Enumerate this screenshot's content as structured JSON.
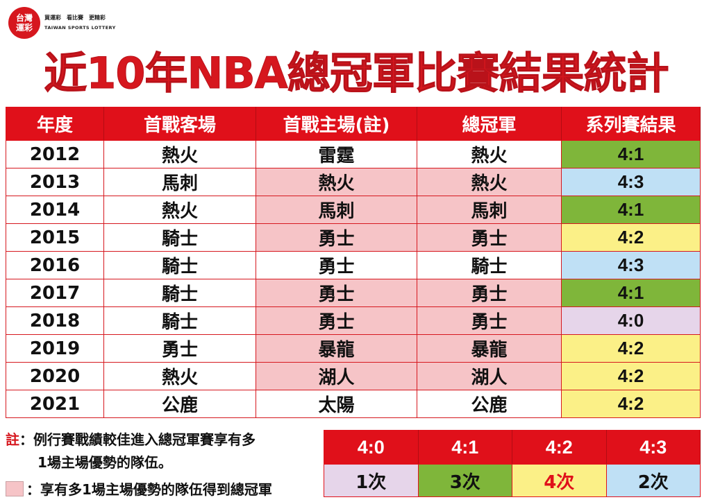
{
  "logo": {
    "line1": "台灣",
    "line2": "運彩"
  },
  "tagline": "買運彩　看比賽　更精彩",
  "tagline_en": "TAIWAN SPORTS LOTTERY",
  "title": "近10年NBA總冠軍比賽結果統計",
  "table": {
    "headers": [
      "年度",
      "首戰客場",
      "首戰主場(註)",
      "總冠軍",
      "系列賽結果"
    ],
    "rows": [
      {
        "year": "2012",
        "away": "熱火",
        "home": "雷霆",
        "champion": "熱火",
        "result": "4:1",
        "highlight": false,
        "result_color": "#7fb63a"
      },
      {
        "year": "2013",
        "away": "馬刺",
        "home": "熱火",
        "champion": "熱火",
        "result": "4:3",
        "highlight": true,
        "result_color": "#bfe0f5"
      },
      {
        "year": "2014",
        "away": "熱火",
        "home": "馬刺",
        "champion": "馬刺",
        "result": "4:1",
        "highlight": true,
        "result_color": "#7fb63a"
      },
      {
        "year": "2015",
        "away": "騎士",
        "home": "勇士",
        "champion": "勇士",
        "result": "4:2",
        "highlight": true,
        "result_color": "#fbf087"
      },
      {
        "year": "2016",
        "away": "騎士",
        "home": "勇士",
        "champion": "騎士",
        "result": "4:3",
        "highlight": false,
        "result_color": "#bfe0f5"
      },
      {
        "year": "2017",
        "away": "騎士",
        "home": "勇士",
        "champion": "勇士",
        "result": "4:1",
        "highlight": true,
        "result_color": "#7fb63a"
      },
      {
        "year": "2018",
        "away": "騎士",
        "home": "勇士",
        "champion": "勇士",
        "result": "4:0",
        "highlight": true,
        "result_color": "#e6d5ea"
      },
      {
        "year": "2019",
        "away": "勇士",
        "home": "暴龍",
        "champion": "暴龍",
        "result": "4:2",
        "highlight": true,
        "result_color": "#fbf087"
      },
      {
        "year": "2020",
        "away": "熱火",
        "home": "湖人",
        "champion": "湖人",
        "result": "4:2",
        "highlight": true,
        "result_color": "#fbf087"
      },
      {
        "year": "2021",
        "away": "公鹿",
        "home": "太陽",
        "champion": "公鹿",
        "result": "4:2",
        "highlight": false,
        "result_color": "#fbf087"
      }
    ]
  },
  "notes": {
    "note_mark": "註",
    "note_line1": "：例行賽戰績較佳進入總冠軍賽享有多",
    "note_line2": "1場主場優勢的隊伍。",
    "legend_text": "：享有多1場主場優勢的隊伍得到總冠軍"
  },
  "summary": {
    "results": [
      "4:0",
      "4:1",
      "4:2",
      "4:3"
    ],
    "counts": [
      "1次",
      "3次",
      "4次",
      "2次"
    ],
    "colors": [
      "#e6d5ea",
      "#7fb63a",
      "#fbf087",
      "#bfe0f5"
    ],
    "highlight_text_color": "#e0101a"
  },
  "colors": {
    "brand_red": "#e0101a",
    "home_advantage_pink": "#f6c4c7"
  }
}
